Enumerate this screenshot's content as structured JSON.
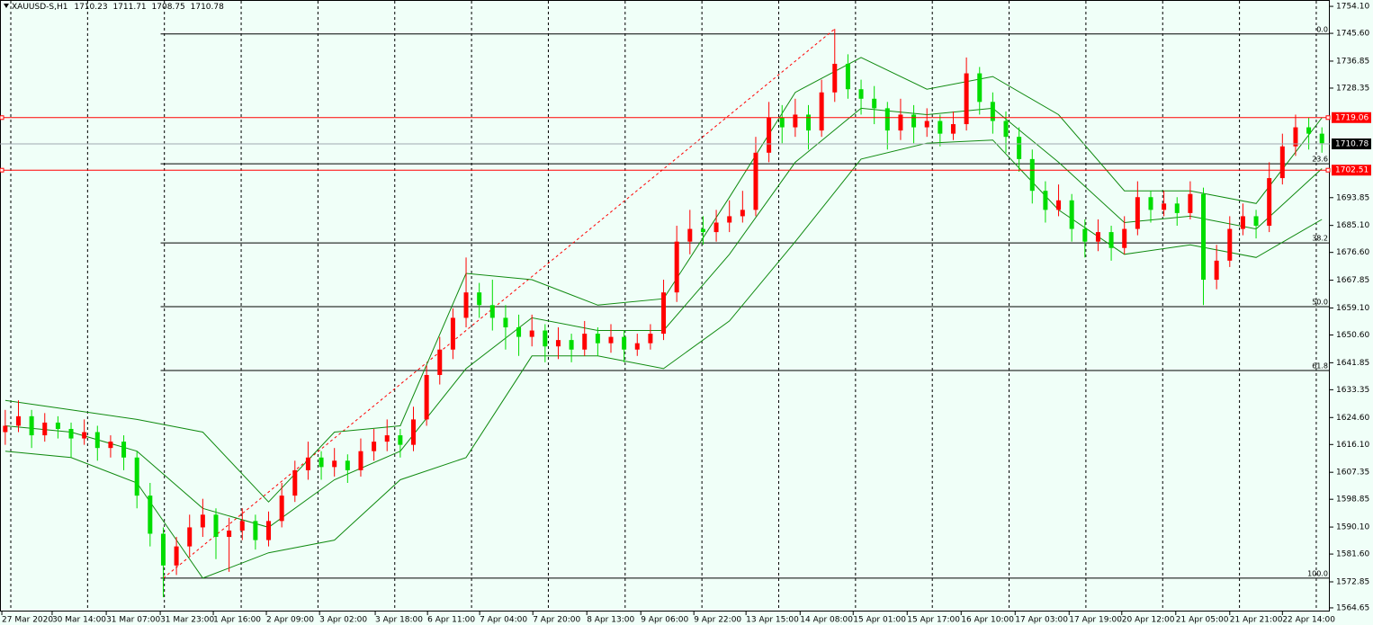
{
  "chart_data": {
    "type": "candlestick",
    "symbol": "XAUUSD-S,H1",
    "quote": [
      1710.23,
      1711.71,
      1708.75,
      1710.78
    ],
    "up_color": "#ff0000",
    "down_color": "#00dd00",
    "band_color": "#108a10",
    "xlim": [
      -0.4,
      100.6
    ],
    "ylim": [
      1563.5,
      1756.1
    ],
    "yticks": [
      {
        "value": 1754.1,
        "label": "1754.10"
      },
      {
        "value": 1745.6,
        "label": "1745.60"
      },
      {
        "value": 1736.85,
        "label": "1736.85"
      },
      {
        "value": 1728.35,
        "label": "1728.35"
      },
      {
        "value": 1693.85,
        "label": "1693.85"
      },
      {
        "value": 1685.1,
        "label": "1685.10"
      },
      {
        "value": 1676.6,
        "label": "1676.60"
      },
      {
        "value": 1667.85,
        "label": "1667.85"
      },
      {
        "value": 1659.1,
        "label": "1659.10"
      },
      {
        "value": 1650.6,
        "label": "1650.60"
      },
      {
        "value": 1641.85,
        "label": "1641.85"
      },
      {
        "value": 1633.35,
        "label": "1633.35"
      },
      {
        "value": 1624.6,
        "label": "1624.60"
      },
      {
        "value": 1616.1,
        "label": "1616.10"
      },
      {
        "value": 1607.35,
        "label": "1607.35"
      },
      {
        "value": 1598.85,
        "label": "1598.85"
      },
      {
        "value": 1590.1,
        "label": "1590.10"
      },
      {
        "value": 1581.6,
        "label": "1581.60"
      },
      {
        "value": 1572.85,
        "label": "1572.85"
      },
      {
        "value": 1564.65,
        "label": "1564.65"
      }
    ],
    "xticks": [
      {
        "value": -0.26,
        "label": "27 Mar 2020"
      },
      {
        "value": 3.56,
        "label": "30 Mar 14:00"
      },
      {
        "value": 7.67,
        "label": "31 Mar 07:00"
      },
      {
        "value": 11.77,
        "label": "31 Mar 23:00"
      },
      {
        "value": 15.8,
        "label": "1 Apr 16:00"
      },
      {
        "value": 19.83,
        "label": "2 Apr 09:00"
      },
      {
        "value": 23.87,
        "label": "3 Apr 02:00"
      },
      {
        "value": 28.1,
        "label": "3 Apr 18:00"
      },
      {
        "value": 32.07,
        "label": "6 Apr 11:00"
      },
      {
        "value": 36.03,
        "label": "7 Apr 04:00"
      },
      {
        "value": 40.07,
        "label": "7 Apr 20:00"
      },
      {
        "value": 44.17,
        "label": "8 Apr 13:00"
      },
      {
        "value": 48.27,
        "label": "9 Apr 06:00"
      },
      {
        "value": 52.3,
        "label": "9 Apr 22:00"
      },
      {
        "value": 56.26,
        "label": "13 Apr 15:00"
      },
      {
        "value": 60.37,
        "label": "14 Apr 08:00"
      },
      {
        "value": 64.4,
        "label": "15 Apr 01:00"
      },
      {
        "value": 68.5,
        "label": "15 Apr 17:00"
      },
      {
        "value": 72.6,
        "label": "16 Apr 10:00"
      },
      {
        "value": 76.7,
        "label": "17 Apr 03:00"
      },
      {
        "value": 80.8,
        "label": "17 Apr 19:00"
      },
      {
        "value": 84.8,
        "label": "20 Apr 12:00"
      },
      {
        "value": 88.9,
        "label": "21 Apr 05:00"
      },
      {
        "value": 93.0,
        "label": "21 Apr 21:00"
      },
      {
        "value": 97.0,
        "label": "22 Apr 14:00"
      }
    ],
    "candles": [
      [
        1620,
        1627,
        1616,
        1622
      ],
      [
        1622,
        1630,
        1620,
        1625
      ],
      [
        1625,
        1627,
        1615,
        1619
      ],
      [
        1619,
        1626,
        1617,
        1623
      ],
      [
        1623,
        1625,
        1618,
        1621
      ],
      [
        1621,
        1623,
        1612,
        1618
      ],
      [
        1618,
        1624,
        1616,
        1620
      ],
      [
        1620,
        1622,
        1611,
        1615
      ],
      [
        1615,
        1619,
        1612,
        1617
      ],
      [
        1617,
        1619,
        1608,
        1612
      ],
      [
        1612,
        1614,
        1596,
        1600
      ],
      [
        1600,
        1604,
        1584,
        1588
      ],
      [
        1588,
        1590,
        1568,
        1578
      ],
      [
        1578,
        1587,
        1575,
        1584
      ],
      [
        1584,
        1594,
        1581,
        1590
      ],
      [
        1590,
        1599,
        1587,
        1594
      ],
      [
        1594,
        1596,
        1580,
        1587
      ],
      [
        1587,
        1593,
        1576,
        1589
      ],
      [
        1589,
        1596,
        1586,
        1592
      ],
      [
        1592,
        1594,
        1583,
        1586
      ],
      [
        1586,
        1595,
        1584,
        1592
      ],
      [
        1592,
        1604,
        1590,
        1600
      ],
      [
        1600,
        1611,
        1598,
        1608
      ],
      [
        1608,
        1617,
        1605,
        1612
      ],
      [
        1612,
        1614,
        1605,
        1609
      ],
      [
        1609,
        1615,
        1606,
        1611
      ],
      [
        1611,
        1613,
        1604,
        1608
      ],
      [
        1608,
        1618,
        1606,
        1614
      ],
      [
        1614,
        1621,
        1611,
        1617
      ],
      [
        1617,
        1624,
        1614,
        1619
      ],
      [
        1619,
        1621,
        1612,
        1616
      ],
      [
        1616,
        1628,
        1614,
        1624
      ],
      [
        1624,
        1641,
        1622,
        1638
      ],
      [
        1638,
        1650,
        1635,
        1646
      ],
      [
        1646,
        1659,
        1643,
        1656
      ],
      [
        1656,
        1675,
        1653,
        1664
      ],
      [
        1664,
        1667,
        1656,
        1660
      ],
      [
        1660,
        1668,
        1652,
        1656
      ],
      [
        1656,
        1660,
        1646,
        1653
      ],
      [
        1653,
        1657,
        1644,
        1650
      ],
      [
        1650,
        1657,
        1647,
        1652
      ],
      [
        1652,
        1654,
        1642,
        1647
      ],
      [
        1647,
        1653,
        1643,
        1649
      ],
      [
        1649,
        1651,
        1642,
        1646
      ],
      [
        1646,
        1655,
        1644,
        1651
      ],
      [
        1651,
        1653,
        1644,
        1648
      ],
      [
        1648,
        1654,
        1645,
        1650
      ],
      [
        1650,
        1652,
        1642,
        1646
      ],
      [
        1646,
        1651,
        1644,
        1648
      ],
      [
        1648,
        1654,
        1646,
        1651
      ],
      [
        1651,
        1668,
        1649,
        1664
      ],
      [
        1664,
        1685,
        1661,
        1680
      ],
      [
        1680,
        1690,
        1676,
        1684
      ],
      [
        1684,
        1688,
        1679,
        1683
      ],
      [
        1683,
        1690,
        1680,
        1686
      ],
      [
        1686,
        1693,
        1683,
        1688
      ],
      [
        1688,
        1696,
        1686,
        1690
      ],
      [
        1690,
        1713,
        1688,
        1708
      ],
      [
        1708,
        1724,
        1705,
        1719
      ],
      [
        1719,
        1723,
        1711,
        1716
      ],
      [
        1716,
        1725,
        1713,
        1720
      ],
      [
        1720,
        1723,
        1709,
        1715
      ],
      [
        1715,
        1731,
        1713,
        1727
      ],
      [
        1727,
        1747,
        1724,
        1736
      ],
      [
        1736,
        1739,
        1725,
        1728
      ],
      [
        1728,
        1731,
        1720,
        1725
      ],
      [
        1725,
        1729,
        1717,
        1722
      ],
      [
        1722,
        1724,
        1709,
        1715
      ],
      [
        1715,
        1725,
        1712,
        1720
      ],
      [
        1720,
        1723,
        1711,
        1716
      ],
      [
        1716,
        1722,
        1713,
        1718
      ],
      [
        1718,
        1720,
        1710,
        1714
      ],
      [
        1714,
        1721,
        1712,
        1717
      ],
      [
        1717,
        1738,
        1715,
        1733
      ],
      [
        1733,
        1735,
        1720,
        1724
      ],
      [
        1724,
        1727,
        1714,
        1718
      ],
      [
        1718,
        1721,
        1708,
        1713
      ],
      [
        1713,
        1716,
        1702,
        1706
      ],
      [
        1706,
        1709,
        1692,
        1696
      ],
      [
        1696,
        1699,
        1686,
        1690
      ],
      [
        1690,
        1698,
        1688,
        1693
      ],
      [
        1693,
        1695,
        1680,
        1684
      ],
      [
        1684,
        1687,
        1675,
        1680
      ],
      [
        1680,
        1687,
        1677,
        1683
      ],
      [
        1683,
        1685,
        1674,
        1678
      ],
      [
        1678,
        1688,
        1676,
        1684
      ],
      [
        1684,
        1699,
        1682,
        1694
      ],
      [
        1694,
        1696,
        1686,
        1690
      ],
      [
        1690,
        1696,
        1688,
        1692
      ],
      [
        1692,
        1694,
        1685,
        1689
      ],
      [
        1689,
        1699,
        1687,
        1695
      ],
      [
        1695,
        1697,
        1660,
        1668
      ],
      [
        1668,
        1679,
        1665,
        1674
      ],
      [
        1674,
        1688,
        1672,
        1684
      ],
      [
        1684,
        1692,
        1682,
        1688
      ],
      [
        1688,
        1690,
        1681,
        1685
      ],
      [
        1685,
        1705,
        1683,
        1700
      ],
      [
        1700,
        1714,
        1698,
        1710
      ],
      [
        1710,
        1720,
        1707,
        1716
      ],
      [
        1716,
        1719,
        1709,
        1714
      ],
      [
        1714,
        1716,
        1708,
        1711
      ]
    ],
    "bands": {
      "bar_index": [
        0,
        5,
        10,
        15,
        20,
        25,
        30,
        35,
        40,
        45,
        50,
        55,
        60,
        65,
        70,
        75,
        80,
        85,
        90,
        95,
        100
      ],
      "upper": [
        1630,
        1627,
        1624,
        1620,
        1598,
        1620,
        1622,
        1670,
        1668,
        1660,
        1662,
        1694,
        1727,
        1738,
        1728,
        1732,
        1720,
        1696,
        1696,
        1692,
        1719
      ],
      "middle": [
        1622,
        1620,
        1614,
        1596,
        1590,
        1605,
        1614,
        1640,
        1656,
        1652,
        1652,
        1676,
        1705,
        1722,
        1720,
        1722,
        1705,
        1686,
        1688,
        1684,
        1703
      ],
      "lower": [
        1614,
        1612,
        1604,
        1574,
        1582,
        1586,
        1605,
        1612,
        1644,
        1644,
        1640,
        1655,
        1680,
        1706,
        1711,
        1712,
        1690,
        1676,
        1679,
        1675,
        1687
      ]
    },
    "trend_line": {
      "from": [
        12,
        1574.0
      ],
      "to": [
        63,
        1747.0
      ],
      "color": "#ff0000"
    },
    "fib_levels": [
      {
        "label": "0.0",
        "price": 1745.4
      },
      {
        "label": "23.6",
        "price": 1704.5
      },
      {
        "label": "38.2",
        "price": 1679.6
      },
      {
        "label": "50.0",
        "price": 1659.5
      },
      {
        "label": "61.8",
        "price": 1639.4
      },
      {
        "label": "100.0",
        "price": 1574.0
      }
    ],
    "fib_start": 11.8,
    "price_lines": [
      {
        "price": 1719.06,
        "label": "1719.06",
        "color": "#ff0000"
      },
      {
        "price": 1702.51,
        "label": "1702.51",
        "color": "#ff0000"
      },
      {
        "price": 1710.78,
        "label": "1710.78",
        "color": "#000000"
      }
    ]
  }
}
